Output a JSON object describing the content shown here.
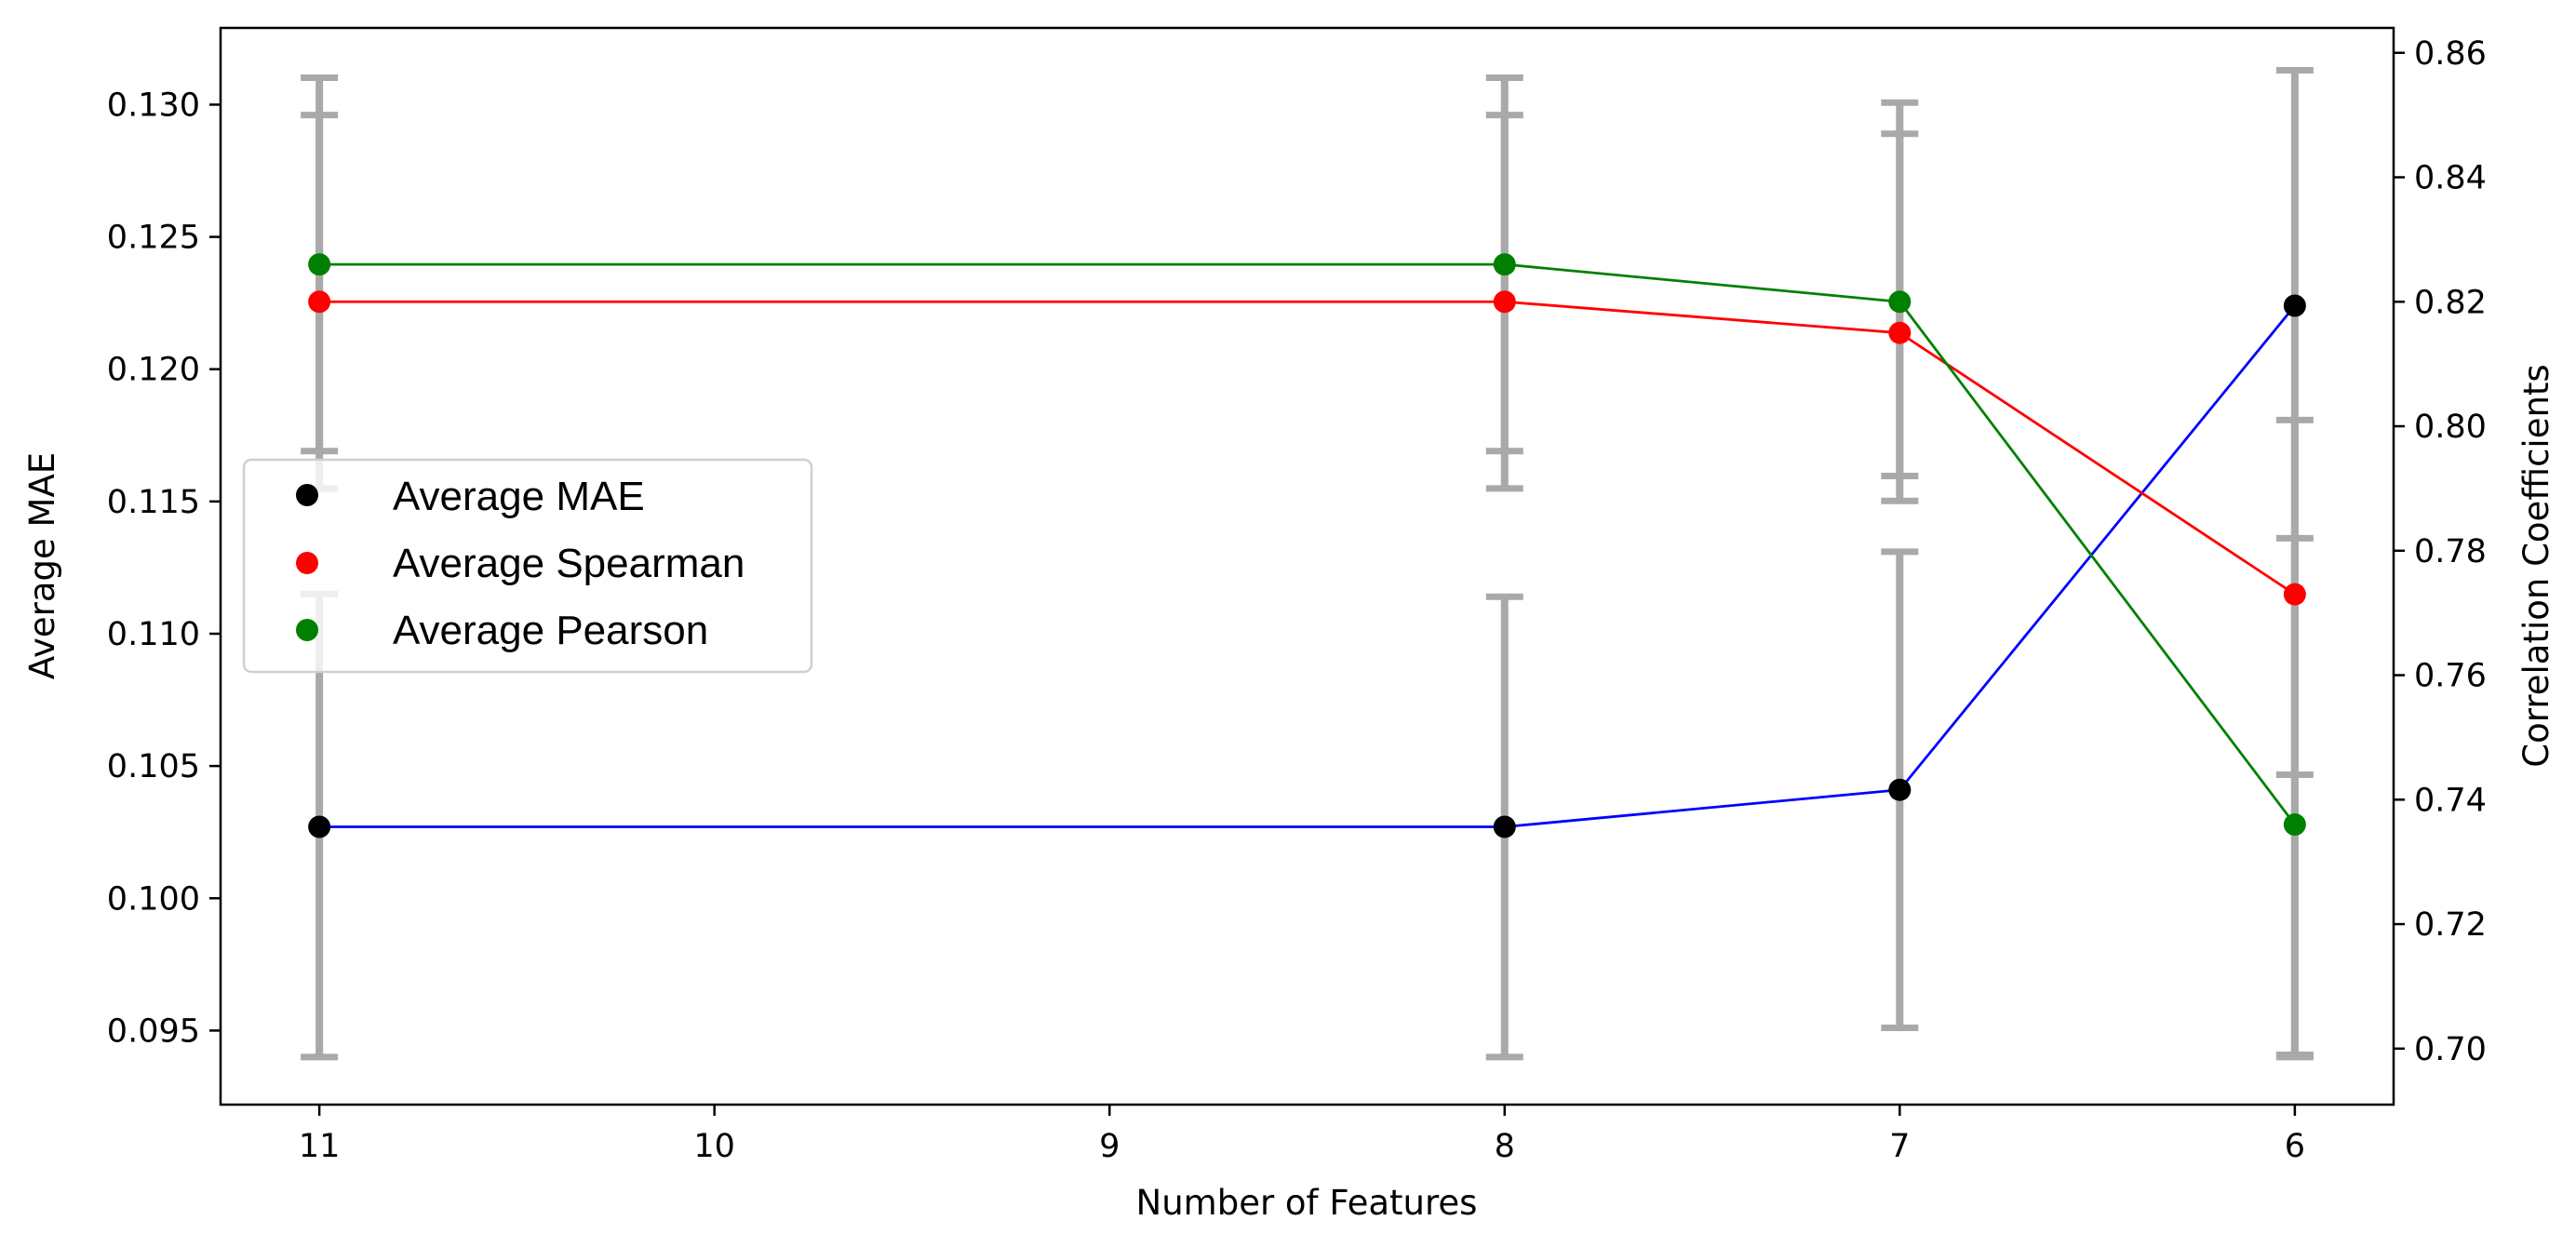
{
  "chart_data": {
    "type": "line",
    "xlabel": "Number of Features",
    "ylabel_left": "Average MAE",
    "ylabel_right": "Correlation Coefficients",
    "x": [
      11,
      8,
      7,
      6
    ],
    "x_ticks": [
      11,
      10,
      9,
      8,
      7,
      6
    ],
    "x_tick_labels": [
      "11",
      "10",
      "9",
      "8",
      "7",
      "6"
    ],
    "xlim": [
      11.25,
      5.75
    ],
    "x_inverted": true,
    "left_axis": {
      "ylim": [
        0.0922,
        0.1329
      ],
      "ticks": [
        0.095,
        0.1,
        0.105,
        0.11,
        0.115,
        0.12,
        0.125,
        0.13
      ],
      "tick_labels": [
        "0.095",
        "0.100",
        "0.105",
        "0.110",
        "0.115",
        "0.120",
        "0.125",
        "0.130"
      ]
    },
    "right_axis": {
      "ylim": [
        0.691,
        0.864
      ],
      "ticks": [
        0.7,
        0.72,
        0.74,
        0.76,
        0.78,
        0.8,
        0.82,
        0.84,
        0.86
      ],
      "tick_labels": [
        "0.70",
        "0.72",
        "0.74",
        "0.76",
        "0.78",
        "0.80",
        "0.82",
        "0.84",
        "0.86"
      ]
    },
    "series": [
      {
        "name": "Average MAE",
        "axis": "left",
        "line_color": "#0000ff",
        "marker_color": "#000000",
        "values": [
          0.1027,
          0.1027,
          0.1041,
          0.1224
        ],
        "err_low": [
          0.094,
          0.094,
          0.0951,
          0.094
        ],
        "err_high": [
          0.1115,
          0.1114,
          0.1131,
          0.1313
        ]
      },
      {
        "name": "Average Spearman",
        "axis": "right",
        "line_color": "#ff0000",
        "marker_color": "#ff0000",
        "values": [
          0.82,
          0.82,
          0.815,
          0.773
        ],
        "err_low": [
          0.79,
          0.79,
          0.788,
          0.744
        ],
        "err_high": [
          0.85,
          0.85,
          0.847,
          0.801
        ]
      },
      {
        "name": "Average Pearson",
        "axis": "right",
        "line_color": "#008000",
        "marker_color": "#008000",
        "values": [
          0.826,
          0.826,
          0.82,
          0.736
        ],
        "err_low": [
          0.796,
          0.796,
          0.792,
          0.699
        ],
        "err_high": [
          0.856,
          0.856,
          0.852,
          0.782
        ]
      }
    ],
    "errorbar_color": "#a9a9a9",
    "legend_position": "center-left",
    "grid": false
  }
}
